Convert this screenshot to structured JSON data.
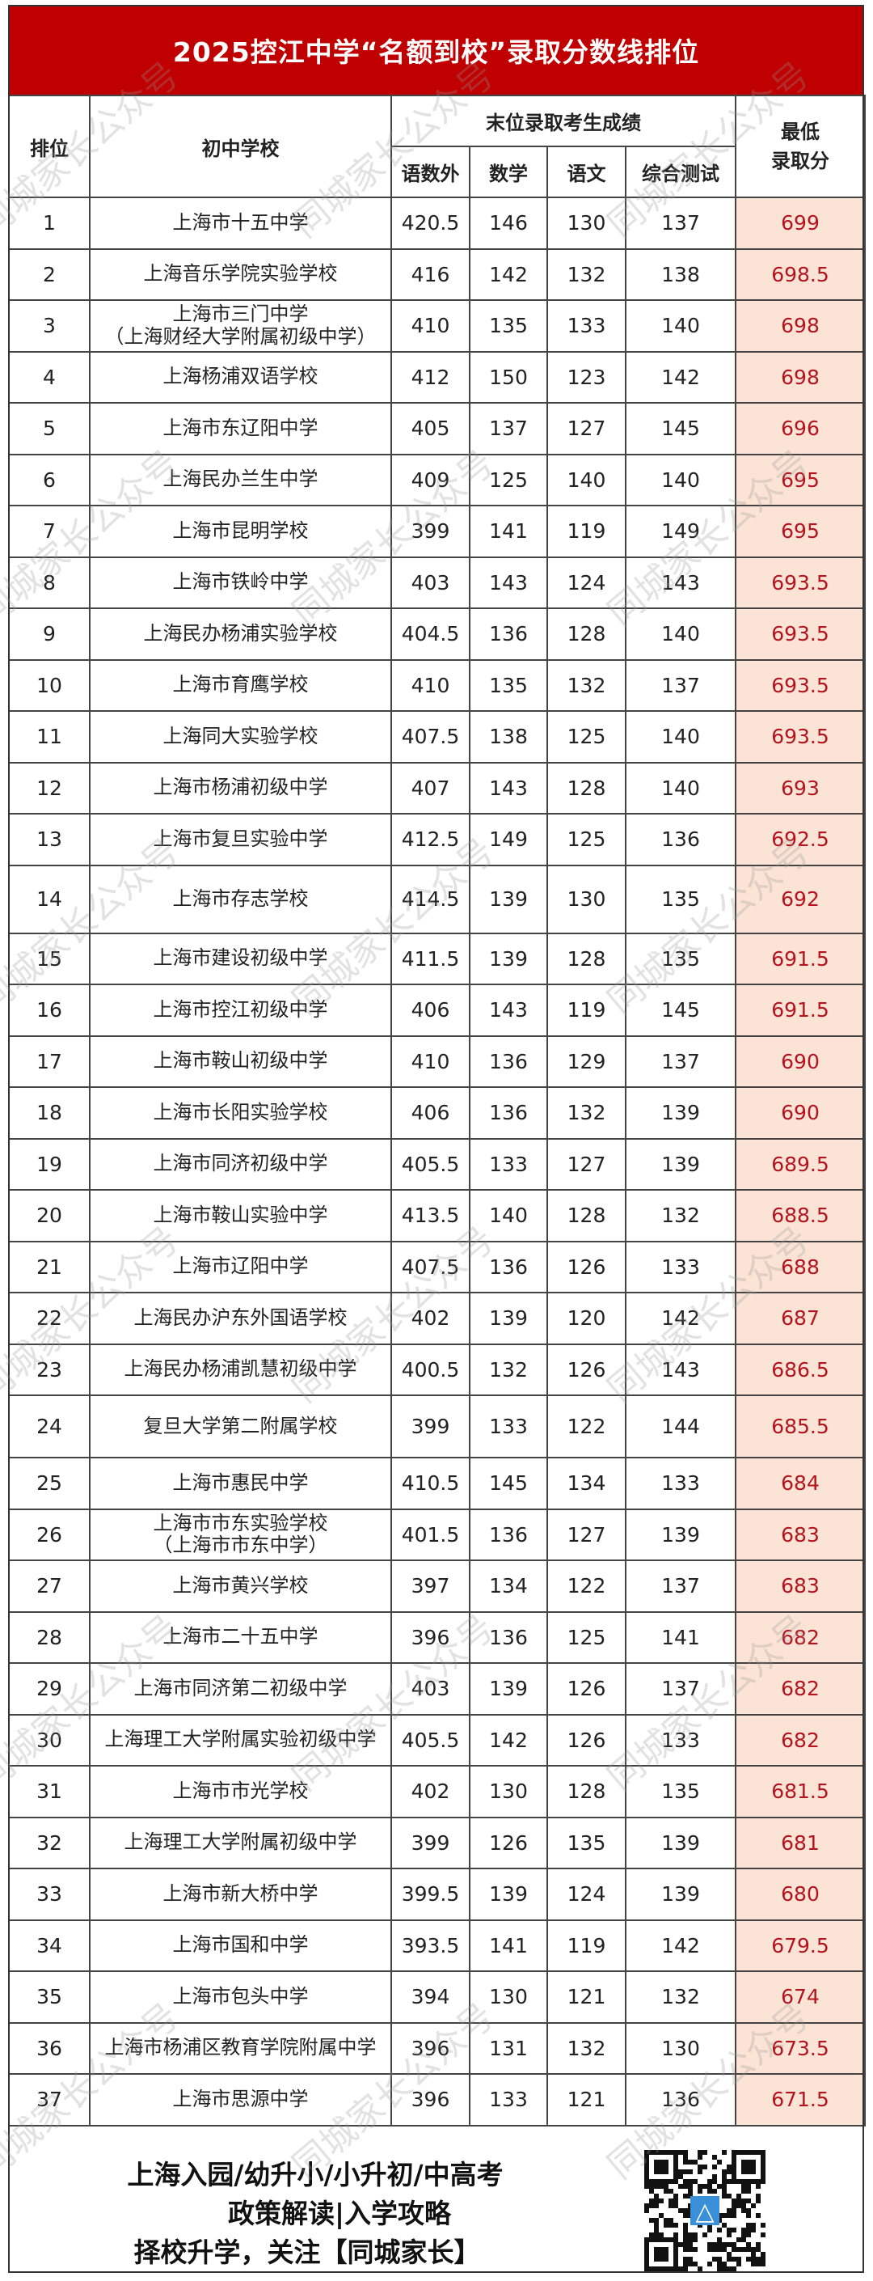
{
  "title": "2025控江中学“名额到校”录取分数线排位",
  "watermark": "同城家长公众号",
  "headers": {
    "rank": "排位",
    "school": "初中学校",
    "group": "末位录取考生成绩",
    "sub": [
      "语数外",
      "数学",
      "语文",
      "综合测试"
    ],
    "min": "最低\n录取分"
  },
  "rows": [
    [
      "1",
      "上海市十五中学",
      "420.5",
      "146",
      "130",
      "137",
      "699"
    ],
    [
      "2",
      "上海音乐学院实验学校",
      "416",
      "142",
      "132",
      "138",
      "698.5"
    ],
    [
      "3",
      "上海市三门中学\n（上海财经大学附属初级中学）",
      "410",
      "135",
      "133",
      "140",
      "698"
    ],
    [
      "4",
      "上海杨浦双语学校",
      "412",
      "150",
      "123",
      "142",
      "698"
    ],
    [
      "5",
      "上海市东辽阳中学",
      "405",
      "137",
      "127",
      "145",
      "696"
    ],
    [
      "6",
      "上海民办兰生中学",
      "409",
      "125",
      "140",
      "140",
      "695"
    ],
    [
      "7",
      "上海市昆明学校",
      "399",
      "141",
      "119",
      "149",
      "695"
    ],
    [
      "8",
      "上海市铁岭中学",
      "403",
      "143",
      "124",
      "143",
      "693.5"
    ],
    [
      "9",
      "上海民办杨浦实验学校",
      "404.5",
      "136",
      "128",
      "140",
      "693.5"
    ],
    [
      "10",
      "上海市育鹰学校",
      "410",
      "135",
      "132",
      "137",
      "693.5"
    ],
    [
      "11",
      "上海同大实验学校",
      "407.5",
      "138",
      "125",
      "140",
      "693.5"
    ],
    [
      "12",
      "上海市杨浦初级中学",
      "407",
      "143",
      "128",
      "140",
      "693"
    ],
    [
      "13",
      "上海市复旦实验中学",
      "412.5",
      "149",
      "125",
      "136",
      "692.5"
    ],
    [
      "14",
      "上海市存志学校",
      "414.5",
      "139",
      "130",
      "135",
      "692"
    ],
    [
      "15",
      "上海市建设初级中学",
      "411.5",
      "139",
      "128",
      "135",
      "691.5"
    ],
    [
      "16",
      "上海市控江初级中学",
      "406",
      "143",
      "119",
      "145",
      "691.5"
    ],
    [
      "17",
      "上海市鞍山初级中学",
      "410",
      "136",
      "129",
      "137",
      "690"
    ],
    [
      "18",
      "上海市长阳实验学校",
      "406",
      "136",
      "132",
      "139",
      "690"
    ],
    [
      "19",
      "上海市同济初级中学",
      "405.5",
      "133",
      "127",
      "139",
      "689.5"
    ],
    [
      "20",
      "上海市鞍山实验中学",
      "413.5",
      "140",
      "128",
      "132",
      "688.5"
    ],
    [
      "21",
      "上海市辽阳中学",
      "407.5",
      "136",
      "126",
      "133",
      "688"
    ],
    [
      "22",
      "上海民办沪东外国语学校",
      "402",
      "139",
      "120",
      "142",
      "687"
    ],
    [
      "23",
      "上海民办杨浦凯慧初级中学",
      "400.5",
      "132",
      "126",
      "143",
      "686.5"
    ],
    [
      "24",
      "复旦大学第二附属学校",
      "399",
      "133",
      "122",
      "144",
      "685.5"
    ],
    [
      "25",
      "上海市惠民中学",
      "410.5",
      "145",
      "134",
      "133",
      "684"
    ],
    [
      "26",
      "上海市市东实验学校\n（上海市市东中学）",
      "401.5",
      "136",
      "127",
      "139",
      "683"
    ],
    [
      "27",
      "上海市黄兴学校",
      "397",
      "134",
      "122",
      "137",
      "683"
    ],
    [
      "28",
      "上海市二十五中学",
      "396",
      "136",
      "125",
      "141",
      "682"
    ],
    [
      "29",
      "上海市同济第二初级中学",
      "403",
      "139",
      "126",
      "137",
      "682"
    ],
    [
      "30",
      "上海理工大学附属实验初级中学",
      "405.5",
      "142",
      "126",
      "133",
      "682"
    ],
    [
      "31",
      "上海市市光学校",
      "402",
      "130",
      "128",
      "135",
      "681.5"
    ],
    [
      "32",
      "上海理工大学附属初级中学",
      "399",
      "126",
      "135",
      "139",
      "681"
    ],
    [
      "33",
      "上海市新大桥中学",
      "399.5",
      "139",
      "124",
      "139",
      "680"
    ],
    [
      "34",
      "上海市国和中学",
      "393.5",
      "141",
      "119",
      "142",
      "679.5"
    ],
    [
      "35",
      "上海市包头中学",
      "394",
      "130",
      "121",
      "132",
      "674"
    ],
    [
      "36",
      "上海市杨浦区教育学院附属中学",
      "396",
      "131",
      "132",
      "130",
      "673.5"
    ],
    [
      "37",
      "上海市思源中学",
      "396",
      "133",
      "121",
      "136",
      "671.5"
    ]
  ],
  "footer": {
    "line1": "上海入园/幼升小/小升初/中高考",
    "line2": "政策解读|入学攻略",
    "line3": "择校升学，关注【同城家长】",
    "qr_icon": "qr-code-icon"
  },
  "colors": {
    "title_bg": "#c00000",
    "min_score_bg": "#fbe3d6",
    "min_score_text": "#b4141e"
  }
}
